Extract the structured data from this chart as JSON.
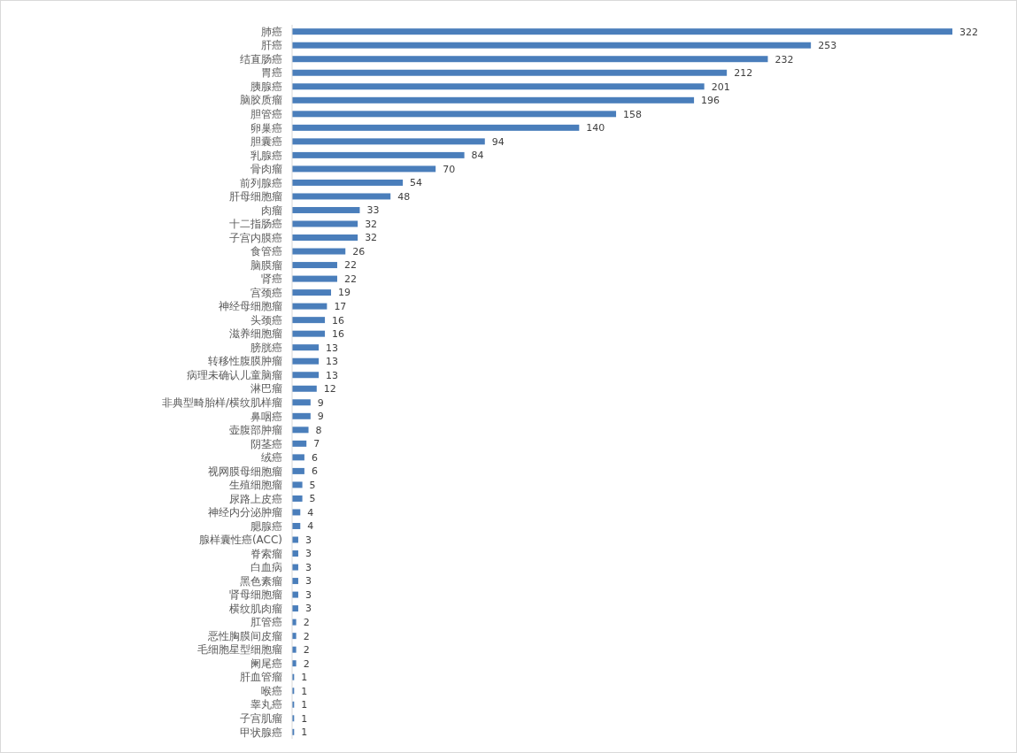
{
  "chart_data": {
    "type": "bar",
    "orientation": "horizontal",
    "data_labels": true,
    "color": "#4a7ebb",
    "categories": [
      "肺癌",
      "肝癌",
      "结直肠癌",
      "胃癌",
      "胰腺癌",
      "脑胶质瘤",
      "胆管癌",
      "卵巢癌",
      "胆囊癌",
      "乳腺癌",
      "骨肉瘤",
      "前列腺癌",
      "肝母细胞瘤",
      "肉瘤",
      "十二指肠癌",
      "子宫内膜癌",
      "食管癌",
      "脑膜瘤",
      "肾癌",
      "宫颈癌",
      "神经母细胞瘤",
      "头颈癌",
      "滋养细胞瘤",
      "膀胱癌",
      "转移性腹膜肿瘤",
      "病理未确认儿童脑瘤",
      "淋巴瘤",
      "非典型畸胎样/横纹肌样瘤",
      "鼻咽癌",
      "壶腹部肿瘤",
      "阴茎癌",
      "绒癌",
      "视网膜母细胞瘤",
      "生殖细胞瘤",
      "尿路上皮癌",
      "神经内分泌肿瘤",
      "腮腺癌",
      "腺样囊性癌(ACC)",
      "脊索瘤",
      "白血病",
      "黑色素瘤",
      "肾母细胞瘤",
      "横纹肌肉瘤",
      "肛管癌",
      "恶性胸膜间皮瘤",
      "毛细胞星型细胞瘤",
      "阑尾癌",
      "肝血管瘤",
      "喉癌",
      "睾丸癌",
      "子宫肌瘤",
      "甲状腺癌"
    ],
    "values": [
      322,
      253,
      232,
      212,
      201,
      196,
      158,
      140,
      94,
      84,
      70,
      54,
      48,
      33,
      32,
      32,
      26,
      22,
      22,
      19,
      17,
      16,
      16,
      13,
      13,
      13,
      12,
      9,
      9,
      8,
      7,
      6,
      6,
      5,
      5,
      4,
      4,
      3,
      3,
      3,
      3,
      3,
      3,
      2,
      2,
      2,
      2,
      1,
      1,
      1,
      1,
      1
    ]
  }
}
